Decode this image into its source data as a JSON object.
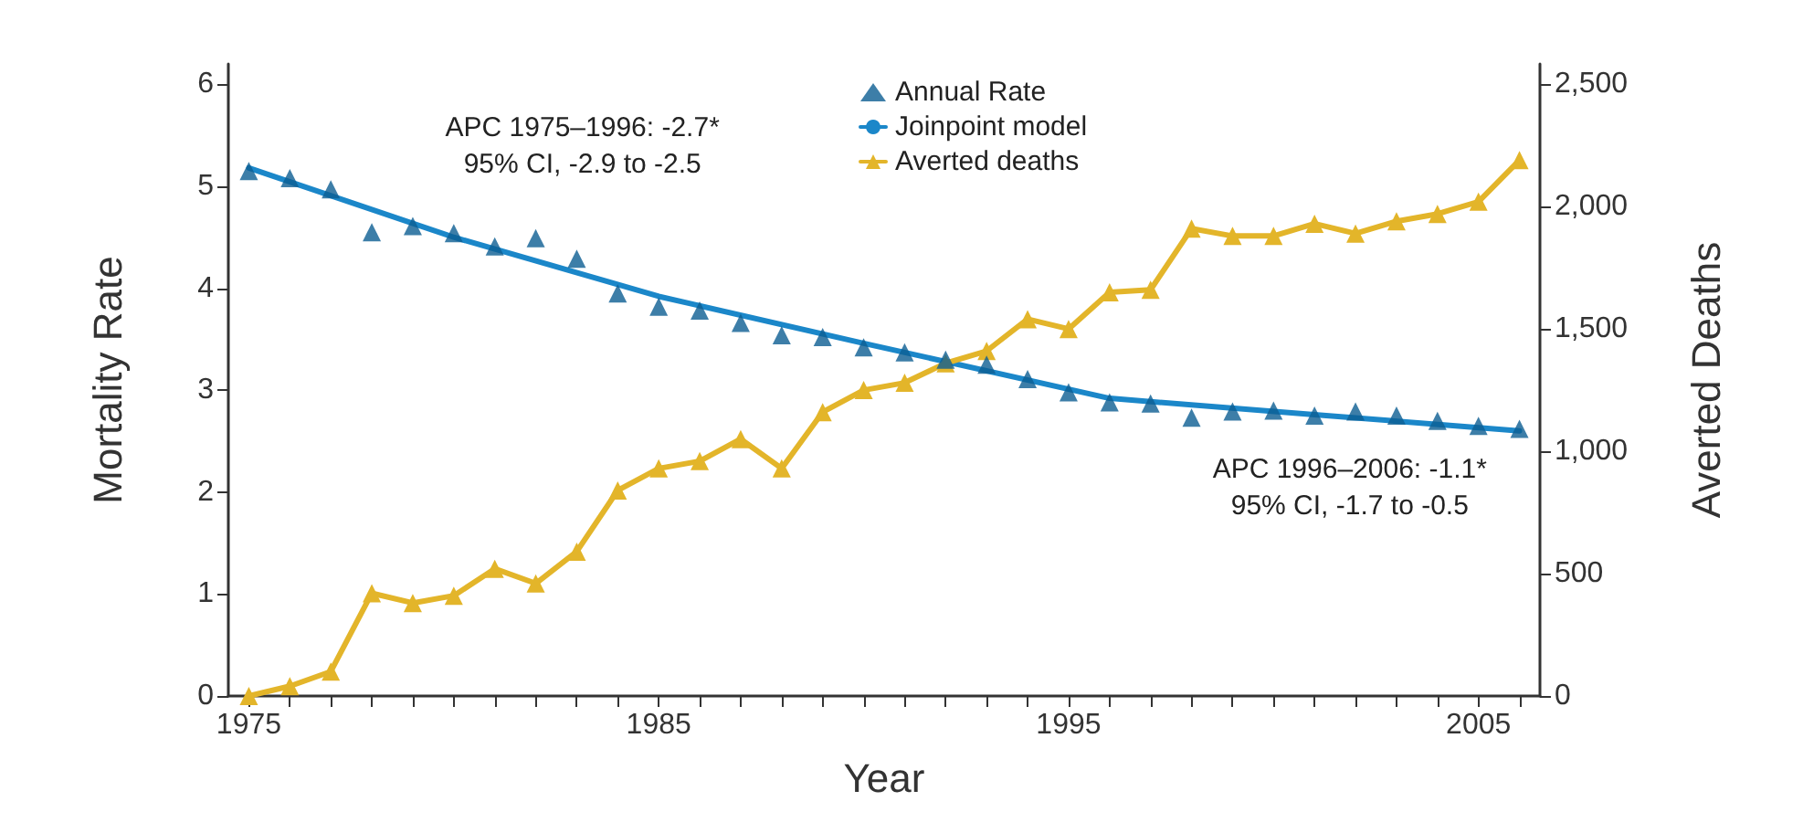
{
  "chart_data": {
    "type": "line",
    "xlabel": "Year",
    "ylabel": "Mortality Rate",
    "y2label": "Averted Deaths",
    "xlim": [
      1974.5,
      2006.5
    ],
    "xticks": [
      {
        "value": 1975,
        "label": "1975"
      },
      {
        "value": 1976,
        "label": null
      },
      {
        "value": 1977,
        "label": null
      },
      {
        "value": 1978,
        "label": null
      },
      {
        "value": 1979,
        "label": null
      },
      {
        "value": 1980,
        "label": null
      },
      {
        "value": 1981,
        "label": null
      },
      {
        "value": 1982,
        "label": null
      },
      {
        "value": 1983,
        "label": null
      },
      {
        "value": 1984,
        "label": null
      },
      {
        "value": 1985,
        "label": "1985"
      },
      {
        "value": 1986,
        "label": null
      },
      {
        "value": 1987,
        "label": null
      },
      {
        "value": 1988,
        "label": null
      },
      {
        "value": 1989,
        "label": null
      },
      {
        "value": 1990,
        "label": null
      },
      {
        "value": 1991,
        "label": null
      },
      {
        "value": 1992,
        "label": null
      },
      {
        "value": 1993,
        "label": null
      },
      {
        "value": 1994,
        "label": null
      },
      {
        "value": 1995,
        "label": "1995"
      },
      {
        "value": 1996,
        "label": null
      },
      {
        "value": 1997,
        "label": null
      },
      {
        "value": 1998,
        "label": null
      },
      {
        "value": 1999,
        "label": null
      },
      {
        "value": 2000,
        "label": null
      },
      {
        "value": 2001,
        "label": null
      },
      {
        "value": 2002,
        "label": null
      },
      {
        "value": 2003,
        "label": null
      },
      {
        "value": 2004,
        "label": null
      },
      {
        "value": 2005,
        "label": "2005"
      },
      {
        "value": 2006,
        "label": null
      }
    ],
    "ylim": [
      0,
      6.2
    ],
    "yticks": [
      0,
      1,
      2,
      3,
      4,
      5,
      6
    ],
    "y2lim": [
      0,
      2583
    ],
    "y2ticks": [
      0,
      500,
      {
        "value": 1000,
        "label": "1,000"
      },
      {
        "value": 1500,
        "label": "1,500"
      },
      {
        "value": 2000,
        "label": "2,000"
      },
      {
        "value": 2500,
        "label": "2,500"
      }
    ],
    "x": [
      1975,
      1976,
      1977,
      1978,
      1979,
      1980,
      1981,
      1982,
      1983,
      1984,
      1985,
      1986,
      1987,
      1988,
      1989,
      1990,
      1991,
      1992,
      1993,
      1994,
      1995,
      1996,
      1997,
      1998,
      1999,
      2000,
      2001,
      2002,
      2003,
      2004,
      2005,
      2006
    ],
    "series": [
      {
        "name": "Annual Rate",
        "type": "scatter",
        "marker": "triangle",
        "color": "#0d5e92",
        "values": [
          5.15,
          5.08,
          4.97,
          4.55,
          4.61,
          4.54,
          4.41,
          4.49,
          4.29,
          3.95,
          3.82,
          3.78,
          3.66,
          3.54,
          3.52,
          3.42,
          3.37,
          3.3,
          3.25,
          3.11,
          2.98,
          2.88,
          2.87,
          2.73,
          2.79,
          2.8,
          2.75,
          2.79,
          2.75,
          2.7,
          2.65,
          2.62
        ]
      },
      {
        "name": "Joinpoint model",
        "marker": "none",
        "color": "#1b87c9",
        "x": [
          1975,
          1980,
          1985,
          1990,
          1996,
          2001,
          2006
        ],
        "values": [
          5.18,
          4.5,
          3.92,
          3.46,
          2.92,
          2.76,
          2.6
        ]
      },
      {
        "name": "Averted deaths",
        "type": "line",
        "marker": "triangle",
        "axis": "y2",
        "color": "#e3b52a",
        "values": [
          0,
          40,
          100,
          420,
          380,
          410,
          520,
          460,
          590,
          840,
          930,
          960,
          1050,
          930,
          1160,
          1250,
          1280,
          1360,
          1410,
          1540,
          1500,
          1650,
          1660,
          1910,
          1880,
          1880,
          1930,
          1890,
          1940,
          1970,
          2020,
          2190
        ]
      }
    ],
    "annotations": [
      "APC 1975–1996: -2.7*\n95% CI, -2.9 to -2.5",
      "APC 1996–2006: -1.1*\n95% CI, -1.7 to -0.5"
    ],
    "legend": "top",
    "grid": false
  }
}
